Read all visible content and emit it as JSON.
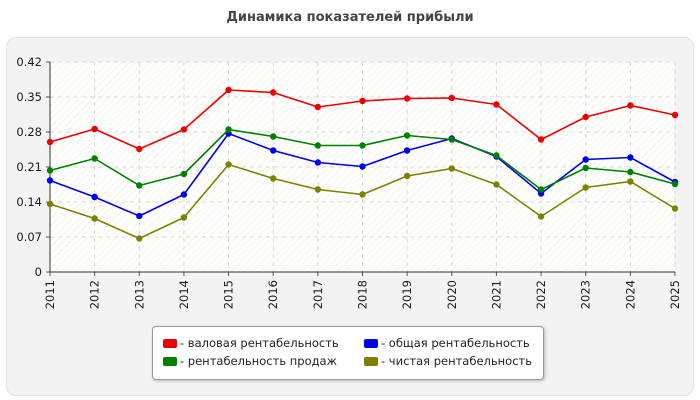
{
  "chart_data": {
    "type": "line",
    "title": "Динамика показателей прибыли",
    "xlabel": "",
    "ylabel": "",
    "categories": [
      "2011",
      "2012",
      "2013",
      "2014",
      "2015",
      "2016",
      "2017",
      "2018",
      "2019",
      "2020",
      "2021",
      "2022",
      "2023",
      "2024",
      "2025"
    ],
    "yticks": [
      "0",
      "0.07",
      "0.14",
      "0.21",
      "0.28",
      "0.35",
      "0.42"
    ],
    "ylim": [
      0,
      0.42
    ],
    "grid": true,
    "legend_position": "bottom",
    "series": [
      {
        "name": "- валовая рентабельность",
        "color": "#ee0000",
        "values": [
          0.26,
          0.286,
          0.246,
          0.285,
          0.364,
          0.359,
          0.33,
          0.342,
          0.347,
          0.348,
          0.335,
          0.265,
          0.31,
          0.333,
          0.314
        ]
      },
      {
        "name": "- общая рентабельность",
        "color": "#0000ee",
        "values": [
          0.183,
          0.15,
          0.112,
          0.155,
          0.277,
          0.243,
          0.219,
          0.211,
          0.243,
          0.267,
          0.231,
          0.157,
          0.225,
          0.229,
          0.18
        ]
      },
      {
        "name": "- рентабельность продаж",
        "color": "#008000",
        "values": [
          0.203,
          0.227,
          0.173,
          0.196,
          0.285,
          0.271,
          0.253,
          0.253,
          0.273,
          0.265,
          0.233,
          0.165,
          0.208,
          0.2,
          0.176
        ]
      },
      {
        "name": "- чистая рентабельность",
        "color": "#808000",
        "values": [
          0.136,
          0.107,
          0.067,
          0.109,
          0.215,
          0.187,
          0.165,
          0.155,
          0.192,
          0.207,
          0.175,
          0.111,
          0.169,
          0.181,
          0.127
        ]
      }
    ]
  }
}
